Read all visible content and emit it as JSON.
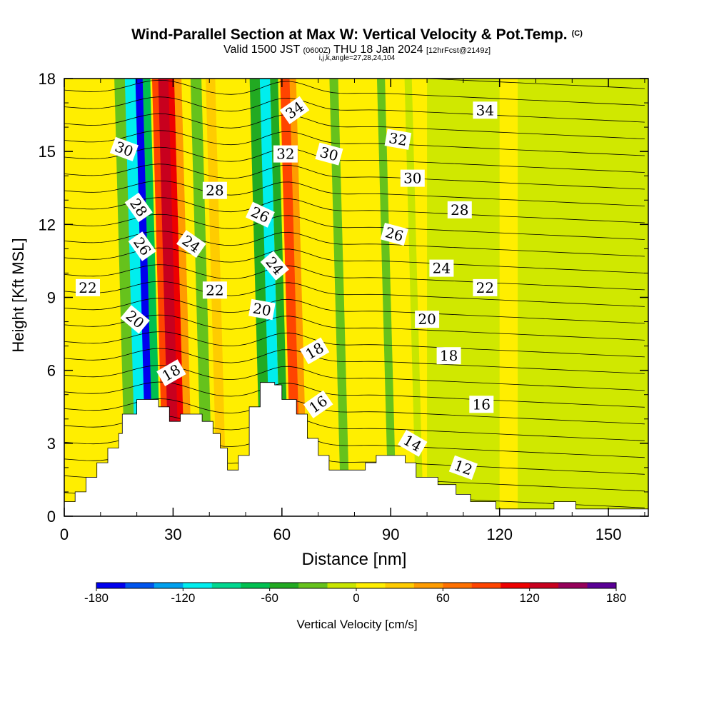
{
  "title": {
    "main": "Wind-Parallel Section at Max W: Vertical Velocity & Pot.Temp.",
    "copyright": "(C)",
    "valid_prefix": "Valid 1500 JST",
    "valid_utc": "(0600Z)",
    "valid_date": "THU 18 Jan 2024",
    "forecast": "[12hrFcst@2149z]",
    "indices": "i,j,k,angle=27,28,24,104"
  },
  "colors": {
    "terrain": "#ffffff",
    "contour_line": "#000000",
    "frame": "#000000",
    "background_fill": "#ffee00",
    "colorbar": [
      "#0000ee",
      "#0055ee",
      "#00a0ee",
      "#00eeee",
      "#00d890",
      "#00c050",
      "#22aa22",
      "#66c21c",
      "#c8e600",
      "#ffee00",
      "#ffcc00",
      "#ff9c00",
      "#ff7000",
      "#ff4400",
      "#ee0000",
      "#c8001e",
      "#96005a",
      "#5a0096"
    ]
  },
  "colorbar": {
    "tick_labels": [
      "-180",
      "-120",
      "-60",
      "0",
      "60",
      "120",
      "180"
    ],
    "label": "Vertical Velocity [cm/s]"
  },
  "chart_data": {
    "type": "heatmap",
    "title": "Wind-Parallel Section at Max W: Vertical Velocity & Pot.Temp.",
    "subtitle": "Valid 1500 JST (0600Z) THU 18 Jan 2024 [12hrFcst@2149z]",
    "xlabel": "Distance [nm]",
    "ylabel": "Height [Kft MSL]",
    "xlim": [
      0,
      161
    ],
    "ylim": [
      0,
      18
    ],
    "x_ticks": [
      0,
      30,
      60,
      90,
      120,
      150
    ],
    "y_ticks": [
      0,
      3,
      6,
      9,
      12,
      15,
      18
    ],
    "colorbar_range": [
      -180,
      180
    ],
    "colorbar_step": 20,
    "fill_field": "Vertical Velocity [cm/s]",
    "contour_field": "Pot.Temp.",
    "contour_interval": 1,
    "terrain_profile_kft": [
      [
        0,
        0.6
      ],
      [
        3,
        0.6
      ],
      [
        3,
        1.0
      ],
      [
        6,
        1.0
      ],
      [
        6,
        1.6
      ],
      [
        9,
        1.6
      ],
      [
        9,
        2.2
      ],
      [
        12,
        2.2
      ],
      [
        12,
        2.8
      ],
      [
        15,
        2.8
      ],
      [
        15,
        3.4
      ],
      [
        16,
        3.4
      ],
      [
        16,
        4.2
      ],
      [
        20,
        4.2
      ],
      [
        20,
        4.8
      ],
      [
        26,
        4.8
      ],
      [
        26,
        4.5
      ],
      [
        29,
        4.5
      ],
      [
        29,
        3.9
      ],
      [
        32,
        3.9
      ],
      [
        32,
        4.2
      ],
      [
        38,
        4.2
      ],
      [
        38,
        3.9
      ],
      [
        41,
        3.9
      ],
      [
        41,
        3.4
      ],
      [
        43,
        3.4
      ],
      [
        43,
        2.8
      ],
      [
        45,
        2.8
      ],
      [
        45,
        1.9
      ],
      [
        48,
        1.9
      ],
      [
        48,
        2.5
      ],
      [
        51,
        2.5
      ],
      [
        51,
        4.5
      ],
      [
        54,
        4.5
      ],
      [
        54,
        5.5
      ],
      [
        58,
        5.5
      ],
      [
        58,
        5.4
      ],
      [
        60,
        5.4
      ],
      [
        60,
        4.8
      ],
      [
        64,
        4.8
      ],
      [
        64,
        4.2
      ],
      [
        67,
        4.2
      ],
      [
        67,
        3.2
      ],
      [
        70,
        3.2
      ],
      [
        70,
        2.5
      ],
      [
        73,
        2.5
      ],
      [
        73,
        1.9
      ],
      [
        83,
        1.9
      ],
      [
        83,
        2.2
      ],
      [
        86,
        2.2
      ],
      [
        86,
        2.5
      ],
      [
        94,
        2.5
      ],
      [
        94,
        2.2
      ],
      [
        97,
        2.2
      ],
      [
        97,
        1.6
      ],
      [
        103,
        1.6
      ],
      [
        103,
        1.3
      ],
      [
        108,
        1.3
      ],
      [
        108,
        0.9
      ],
      [
        112,
        0.9
      ],
      [
        112,
        0.6
      ],
      [
        119,
        0.6
      ],
      [
        119,
        0.3
      ],
      [
        135,
        0.3
      ],
      [
        135,
        0.6
      ],
      [
        141,
        0.6
      ],
      [
        141,
        0.3
      ],
      [
        161,
        0.3
      ]
    ],
    "velocity_bands": [
      {
        "x": 15.5,
        "width": 1.6,
        "value": 10
      },
      {
        "x": 18.5,
        "width": 3.0,
        "value": -40
      },
      {
        "x": 21.5,
        "width": 3.2,
        "value": -120
      },
      {
        "x": 23.8,
        "width": 2.0,
        "value": -170
      },
      {
        "x": 25.8,
        "width": 2.2,
        "value": -80
      },
      {
        "x": 28.5,
        "width": 2.2,
        "value": 90
      },
      {
        "x": 30.5,
        "width": 2.8,
        "value": 130
      },
      {
        "x": 32.5,
        "width": 2.0,
        "value": 100
      },
      {
        "x": 34.5,
        "width": 2.0,
        "value": 40
      },
      {
        "x": 39.5,
        "width": 3.0,
        "value": -40
      },
      {
        "x": 43.5,
        "width": 2.6,
        "value": 20
      },
      {
        "x": 56.0,
        "width": 3.4,
        "value": -50
      },
      {
        "x": 58.5,
        "width": 2.8,
        "value": -110
      },
      {
        "x": 61.0,
        "width": 2.2,
        "value": -60
      },
      {
        "x": 64.0,
        "width": 2.6,
        "value": 80
      },
      {
        "x": 66.0,
        "width": 2.2,
        "value": 40
      },
      {
        "x": 77.5,
        "width": 2.4,
        "value": -30
      },
      {
        "x": 90.5,
        "width": 2.2,
        "value": -40
      },
      {
        "x": 98.0,
        "width": 2.0,
        "value": -10
      }
    ],
    "series": [
      {
        "name": "30",
        "values": [
          [
            16.5,
            15.1,
            30
          ]
        ]
      },
      {
        "name": "28",
        "values": [
          [
            20.5,
            12.7,
            28
          ],
          [
            41.5,
            13.4,
            28
          ],
          [
            109,
            12.6,
            28
          ]
        ]
      },
      {
        "name": "26",
        "values": [
          [
            21.5,
            11.1,
            26
          ],
          [
            54,
            12.4,
            26
          ],
          [
            91,
            11.6,
            26
          ]
        ]
      },
      {
        "name": "24",
        "values": [
          [
            35,
            11.2,
            24
          ],
          [
            58,
            10.3,
            24
          ],
          [
            104,
            10.2,
            24
          ]
        ]
      },
      {
        "name": "22",
        "values": [
          [
            6.5,
            9.4,
            22
          ],
          [
            41.5,
            9.3,
            22
          ],
          [
            116,
            9.4,
            22
          ]
        ]
      },
      {
        "name": "20",
        "values": [
          [
            19.5,
            8.1,
            20
          ],
          [
            54.5,
            8.5,
            20
          ],
          [
            100,
            8.1,
            20
          ]
        ]
      },
      {
        "name": "18",
        "values": [
          [
            29.5,
            5.9,
            18
          ],
          [
            69,
            6.8,
            18
          ],
          [
            106,
            6.6,
            18
          ]
        ]
      },
      {
        "name": "16",
        "values": [
          [
            70,
            4.6,
            16
          ],
          [
            115,
            4.6,
            16
          ]
        ]
      },
      {
        "name": "14",
        "values": [
          [
            96,
            3.0,
            14
          ]
        ]
      },
      {
        "name": "12",
        "values": [
          [
            110,
            2.0,
            12
          ]
        ]
      },
      {
        "name": "30 (upper)",
        "values": [
          [
            73,
            14.9,
            30
          ],
          [
            96,
            13.9,
            30
          ]
        ]
      },
      {
        "name": "32",
        "values": [
          [
            61,
            14.9,
            32
          ],
          [
            92,
            15.5,
            32
          ]
        ]
      },
      {
        "name": "34",
        "values": [
          [
            63.5,
            16.7,
            34
          ],
          [
            116,
            16.7,
            34
          ]
        ]
      }
    ],
    "contour_labels": [
      {
        "text": "30",
        "x": 16.5,
        "y": 15.1,
        "angle": 20
      },
      {
        "text": "28",
        "x": 20.5,
        "y": 12.7,
        "angle": 55
      },
      {
        "text": "26",
        "x": 21.5,
        "y": 11.1,
        "angle": 55
      },
      {
        "text": "20",
        "x": 19.5,
        "y": 8.1,
        "angle": 40
      },
      {
        "text": "22",
        "x": 6.5,
        "y": 9.4,
        "angle": 0
      },
      {
        "text": "18",
        "x": 29.5,
        "y": 5.9,
        "angle": -30
      },
      {
        "text": "24",
        "x": 35,
        "y": 11.2,
        "angle": 35
      },
      {
        "text": "28",
        "x": 41.5,
        "y": 13.4,
        "angle": 0
      },
      {
        "text": "22",
        "x": 41.5,
        "y": 9.3,
        "angle": 0
      },
      {
        "text": "34",
        "x": 63.5,
        "y": 16.7,
        "angle": -35
      },
      {
        "text": "32",
        "x": 61,
        "y": 14.9,
        "angle": 0
      },
      {
        "text": "30",
        "x": 73,
        "y": 14.9,
        "angle": 15
      },
      {
        "text": "26",
        "x": 54,
        "y": 12.4,
        "angle": 25
      },
      {
        "text": "24",
        "x": 58,
        "y": 10.3,
        "angle": 50
      },
      {
        "text": "20",
        "x": 54.5,
        "y": 8.5,
        "angle": 10
      },
      {
        "text": "18",
        "x": 69,
        "y": 6.8,
        "angle": -30
      },
      {
        "text": "16",
        "x": 70,
        "y": 4.6,
        "angle": -35
      },
      {
        "text": "34",
        "x": 116,
        "y": 16.7,
        "angle": 0
      },
      {
        "text": "32",
        "x": 92,
        "y": 15.5,
        "angle": 10
      },
      {
        "text": "30",
        "x": 96,
        "y": 13.9,
        "angle": 0
      },
      {
        "text": "28",
        "x": 109,
        "y": 12.6,
        "angle": 0
      },
      {
        "text": "26",
        "x": 91,
        "y": 11.6,
        "angle": 15
      },
      {
        "text": "24",
        "x": 104,
        "y": 10.2,
        "angle": 0
      },
      {
        "text": "22",
        "x": 116,
        "y": 9.4,
        "angle": 0
      },
      {
        "text": "20",
        "x": 100,
        "y": 8.1,
        "angle": 0
      },
      {
        "text": "18",
        "x": 106,
        "y": 6.6,
        "angle": 0
      },
      {
        "text": "16",
        "x": 115,
        "y": 4.6,
        "angle": 0
      },
      {
        "text": "14",
        "x": 96,
        "y": 3.0,
        "angle": 30
      },
      {
        "text": "12",
        "x": 110,
        "y": 2.0,
        "angle": 20
      }
    ]
  }
}
